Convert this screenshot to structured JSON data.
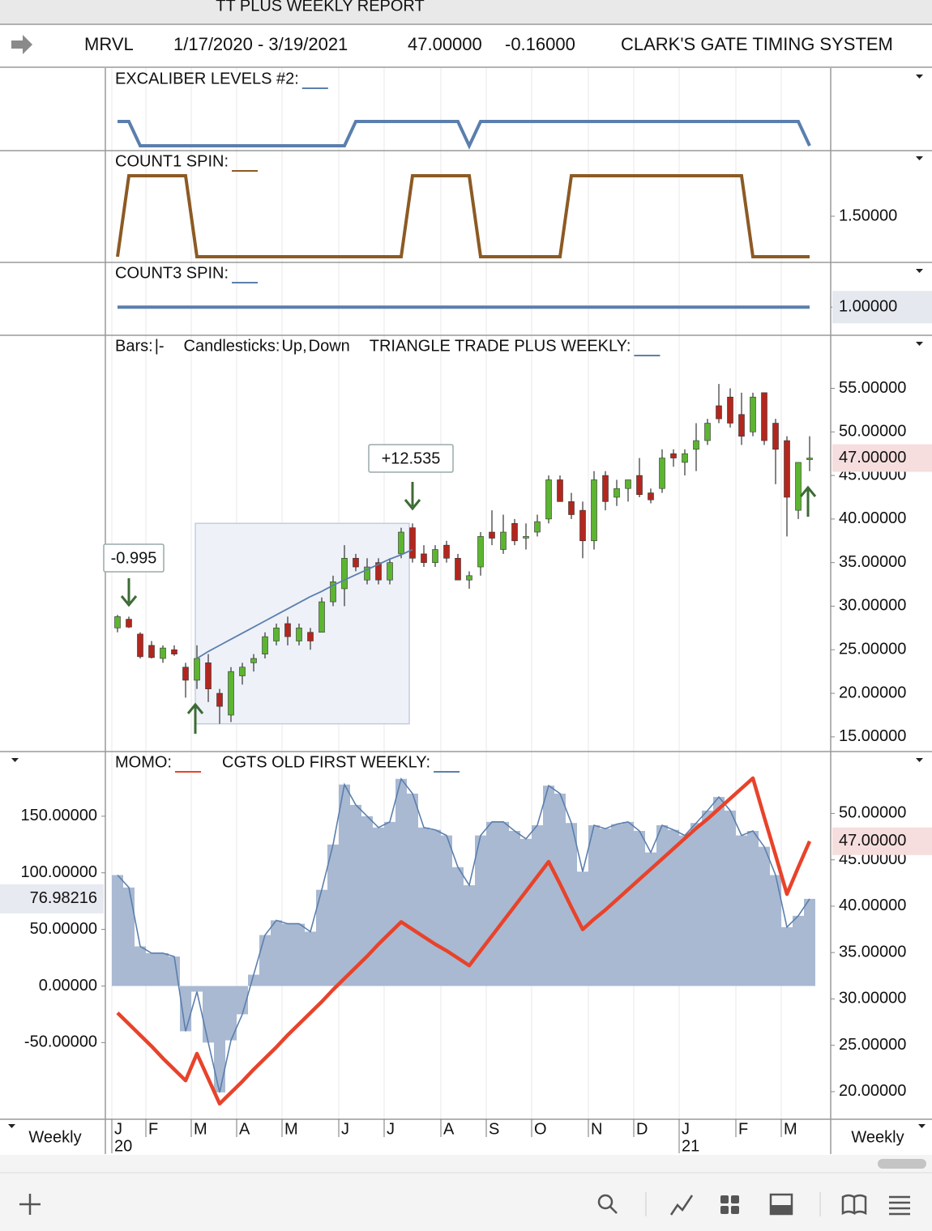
{
  "header": {
    "title": "TT PLUS WEEKLY REPORT",
    "symbol": "MRVL",
    "range": "1/17/2020 - 3/19/2021",
    "last": "47.00000",
    "change": "-0.16000",
    "system": "CLARK'S GATE TIMING SYSTEM"
  },
  "chart_data": [
    {
      "type": "line",
      "series": [
        {
          "name": "EXCALIBER LEVELS #2:",
          "color": "#5b7fad",
          "values": [
            1,
            1,
            0,
            0,
            0,
            0,
            0,
            0,
            0,
            0,
            0,
            0,
            0,
            0,
            0,
            0,
            0,
            0,
            0,
            0,
            0,
            1,
            1,
            1,
            1,
            1,
            1,
            1,
            1,
            1,
            1,
            0,
            1,
            1,
            1,
            1,
            1,
            1,
            1,
            1,
            1,
            1,
            1,
            1,
            1,
            1,
            1,
            1,
            1,
            1,
            1,
            1,
            1,
            1,
            1,
            1,
            1,
            1,
            1,
            1,
            1,
            0
          ]
        }
      ]
    },
    {
      "type": "line",
      "ylim": [
        0.95,
        2.29
      ],
      "yticks": [
        {
          "value": 1.5,
          "label": "1.50000"
        }
      ],
      "series": [
        {
          "name": "COUNT1 SPIN:",
          "color": "#8c5a24",
          "values": [
            1,
            2,
            2,
            2,
            2,
            2,
            2,
            1,
            1,
            1,
            1,
            1,
            1,
            1,
            1,
            1,
            1,
            1,
            1,
            1,
            1,
            1,
            1,
            1,
            1,
            1,
            2,
            2,
            2,
            2,
            2,
            2,
            1,
            1,
            1,
            1,
            1,
            1,
            1,
            1,
            2,
            2,
            2,
            2,
            2,
            2,
            2,
            2,
            2,
            2,
            2,
            2,
            2,
            2,
            2,
            2,
            1,
            1,
            1,
            1,
            1,
            1
          ]
        }
      ]
    },
    {
      "type": "line",
      "ylim": [
        0.6,
        1.65
      ],
      "yticks": [
        {
          "value": 1,
          "label": "1.00000"
        }
      ],
      "series": [
        {
          "name": "COUNT3 SPIN:",
          "color": "#5b7fad",
          "values": [
            1,
            1,
            1,
            1,
            1,
            1,
            1,
            1,
            1,
            1,
            1,
            1,
            1,
            1,
            1,
            1,
            1,
            1,
            1,
            1,
            1,
            1,
            1,
            1,
            1,
            1,
            1,
            1,
            1,
            1,
            1,
            1,
            1,
            1,
            1,
            1,
            1,
            1,
            1,
            1,
            1,
            1,
            1,
            1,
            1,
            1,
            1,
            1,
            1,
            1,
            1,
            1,
            1,
            1,
            1,
            1,
            1,
            1,
            1,
            1,
            1,
            1
          ]
        }
      ]
    },
    {
      "type": "candlestick",
      "ylim": [
        13.5,
        60.9
      ],
      "yticks": [
        {
          "value": 15,
          "label": "15.00000"
        },
        {
          "value": 20,
          "label": "20.00000"
        },
        {
          "value": 25,
          "label": "25.00000"
        },
        {
          "value": 30,
          "label": "30.00000"
        },
        {
          "value": 35,
          "label": "35.00000"
        },
        {
          "value": 40,
          "label": "40.00000"
        },
        {
          "value": 45,
          "label": "45.00000"
        },
        {
          "value": 50,
          "label": "50.00000"
        },
        {
          "value": 55,
          "label": "55.00000"
        }
      ],
      "current": {
        "value": 47,
        "label": "47.00000"
      },
      "legend": {
        "bars": "Bars:",
        "bars_symbol": "|-",
        "candles": "Candlesticks:",
        "up": "Up",
        "separator": ",",
        "down": "Down"
      },
      "up_color": "#5cb531",
      "down_color": "#b3261e",
      "open": [
        27.5,
        28.5,
        26.8,
        25.5,
        24,
        25,
        23,
        21.5,
        23.5,
        20,
        17.5,
        22,
        23.5,
        24.5,
        26,
        28,
        26,
        27,
        27,
        30.5,
        32,
        35.5,
        33,
        35,
        33,
        36,
        39,
        36,
        35,
        37,
        35.5,
        33,
        34.5,
        38.5,
        36.5,
        39.5,
        38,
        38.5,
        40,
        44.5,
        42,
        41,
        37.5,
        45,
        42.5,
        43.5,
        45,
        43,
        43.5,
        47.5,
        46.5,
        48,
        49,
        53,
        54,
        52,
        50,
        54.5,
        51,
        49,
        41,
        47
      ],
      "high": [
        29,
        28.8,
        27,
        26,
        25.5,
        25.5,
        23.5,
        25.5,
        24.5,
        20.5,
        23,
        23.5,
        24.5,
        27,
        28,
        28.8,
        28,
        27.5,
        31,
        33.5,
        37,
        36,
        35.5,
        35.5,
        35.5,
        39,
        39.5,
        37,
        37,
        37.5,
        36,
        34,
        38.5,
        41,
        40.5,
        40,
        39.5,
        40.5,
        45,
        45,
        43,
        42,
        45.5,
        45.5,
        44.5,
        44.5,
        47,
        43.5,
        48,
        48,
        48,
        51,
        51.5,
        55.5,
        55,
        54.5,
        54.5,
        54.5,
        51.5,
        49.5,
        46.5,
        49.5
      ],
      "low": [
        27,
        27.5,
        24,
        24,
        23.5,
        24.3,
        19.5,
        20.5,
        19,
        16.5,
        16.7,
        21,
        22.5,
        24,
        25.5,
        25.5,
        25.5,
        25,
        27,
        30,
        30,
        34,
        32.5,
        32.5,
        32.5,
        35.5,
        35,
        34.5,
        34.5,
        35,
        33,
        32,
        33.5,
        37,
        36,
        37,
        36.5,
        38,
        39.5,
        42,
        40,
        35.5,
        36.5,
        41,
        41.5,
        42,
        42.5,
        41.8,
        43,
        46,
        45,
        45.5,
        48.5,
        51,
        50.5,
        48.5,
        49.5,
        48.5,
        44,
        38,
        40,
        45.5
      ],
      "close": [
        28.8,
        27.6,
        24.2,
        24.1,
        25.2,
        24.5,
        21.5,
        24,
        20.5,
        18.5,
        22.5,
        23,
        24,
        26.5,
        27.5,
        26.5,
        27.5,
        26,
        30.5,
        32.8,
        35.5,
        34.5,
        34.5,
        33,
        35,
        38.5,
        35.5,
        35,
        36.5,
        35.5,
        33,
        33.5,
        38,
        37.8,
        38.5,
        37.5,
        38,
        39.7,
        44.5,
        42,
        40.5,
        37.5,
        44.5,
        42,
        43.5,
        44.5,
        42.8,
        42.2,
        47,
        47,
        47.5,
        49,
        51,
        51.5,
        51,
        49.5,
        54,
        49,
        48,
        42.5,
        46.5,
        47
      ],
      "series": [
        {
          "name": "TRIANGLE TRADE PLUS WEEKLY:",
          "color": "#5b7fad",
          "values": [
            null,
            null,
            null,
            null,
            null,
            null,
            null,
            24,
            24.8,
            25.5,
            26.2,
            26.9,
            27.6,
            28.3,
            29,
            29.7,
            30.4,
            31.1,
            31.7,
            32.4,
            33,
            33.6,
            34.2,
            34.8,
            35.4,
            35.9,
            36.5,
            null,
            null,
            null,
            null,
            null,
            null,
            null,
            null,
            null,
            null,
            null,
            null,
            null,
            null,
            null,
            null,
            null,
            null,
            null,
            null,
            null,
            null,
            null,
            null,
            null,
            null,
            null,
            null,
            null,
            null,
            null,
            null,
            null,
            null,
            null
          ]
        }
      ],
      "annotations": [
        "-0.995",
        "+12.535"
      ]
    },
    {
      "type": "area",
      "ylim": [
        -116.3,
        205.7
      ],
      "y2lim": [
        17.2,
        56.5
      ],
      "yticks": [
        {
          "value": -50,
          "label": "-50.00000"
        },
        {
          "value": 0,
          "label": "0.00000"
        },
        {
          "value": 50,
          "label": "50.00000"
        },
        {
          "value": 100,
          "label": "100.00000"
        },
        {
          "value": 150,
          "label": "150.00000"
        }
      ],
      "y2ticks": [
        {
          "value": 20,
          "label": "20.00000"
        },
        {
          "value": 25,
          "label": "25.00000"
        },
        {
          "value": 30,
          "label": "30.00000"
        },
        {
          "value": 35,
          "label": "35.00000"
        },
        {
          "value": 40,
          "label": "40.00000"
        },
        {
          "value": 45,
          "label": "45.00000"
        },
        {
          "value": 50,
          "label": "50.00000"
        }
      ],
      "y_current": 76.98216,
      "y2_current": {
        "value": 47,
        "label": "47.00000"
      },
      "series": [
        {
          "name": "MOMO:",
          "color": "#e8432a",
          "axis": "y2",
          "values": [
            28.5,
            27.3,
            26.1,
            24.9,
            23.6,
            22.4,
            21.2,
            24.1,
            21.4,
            18.7,
            19.9,
            21.1,
            22.4,
            23.6,
            24.8,
            26.1,
            27.3,
            28.5,
            29.7,
            31.0,
            32.2,
            33.4,
            34.6,
            35.9,
            37.1,
            38.3,
            37.5,
            36.7,
            35.9,
            35.2,
            34.4,
            33.6,
            35.2,
            36.8,
            38.4,
            40.0,
            41.6,
            43.2,
            44.8,
            42.4,
            39.9,
            37.5,
            38.6,
            39.6,
            40.7,
            41.8,
            42.9,
            44.0,
            45.1,
            46.2,
            47.3,
            48.4,
            49.4,
            50.5,
            51.6,
            52.7,
            53.8,
            49.6,
            45.5,
            41.3,
            44.2,
            47
          ]
        },
        {
          "name": "CGTS OLD FIRST WEEKLY:",
          "color": "#5b7fad",
          "fill": "#a9b9d2",
          "values": [
            98,
            87,
            35,
            29,
            29,
            26,
            -40,
            -5,
            -50,
            -94,
            -48,
            -25,
            10,
            45,
            58,
            55,
            55,
            48,
            85,
            125,
            178,
            160,
            150,
            140,
            145,
            183,
            170,
            140,
            138,
            133,
            105,
            89,
            133,
            145,
            145,
            137,
            130,
            142,
            177,
            170,
            144,
            101,
            142,
            139,
            143,
            145,
            137,
            118,
            142,
            138,
            133,
            144,
            155,
            167,
            155,
            133,
            137,
            123,
            98,
            52,
            62,
            76.98216
          ]
        }
      ],
      "categories": [
        "J",
        null,
        null,
        "F",
        null,
        null,
        null,
        "M",
        null,
        null,
        null,
        "A",
        null,
        null,
        null,
        "M",
        null,
        null,
        null,
        null,
        "J",
        null,
        null,
        null,
        "J",
        null,
        null,
        null,
        null,
        "A",
        null,
        null,
        null,
        "S",
        null,
        null,
        null,
        "O",
        null,
        null,
        null,
        null,
        "N",
        null,
        null,
        null,
        "D",
        null,
        null,
        null,
        "J",
        null,
        null,
        null,
        null,
        "F",
        null,
        null,
        null,
        "M",
        null,
        null
      ],
      "year_labels": [
        "20",
        null,
        null,
        null,
        null,
        null,
        null,
        null,
        null,
        null,
        null,
        null,
        null,
        null,
        null,
        null,
        null,
        null,
        null,
        null,
        null,
        null,
        null,
        null,
        null,
        null,
        null,
        null,
        null,
        null,
        null,
        null,
        null,
        null,
        null,
        null,
        null,
        null,
        null,
        null,
        null,
        null,
        null,
        null,
        null,
        null,
        null,
        null,
        null,
        null,
        "21",
        null,
        null,
        null,
        null,
        null,
        null,
        null,
        null,
        null,
        null,
        null
      ],
      "period": "Weekly"
    }
  ]
}
